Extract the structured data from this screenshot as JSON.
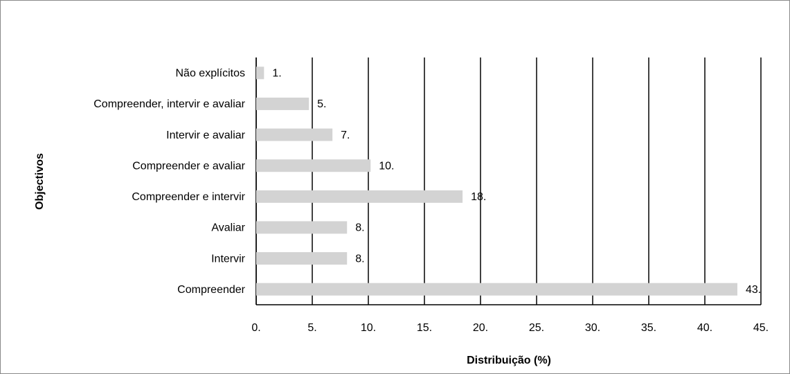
{
  "chart_data": {
    "type": "barh",
    "categories": [
      "Não explícitos",
      "Compreender, intervir e avaliar",
      "Intervir e avaliar",
      "Compreender e avaliar",
      "Compreender e intervir",
      "Avaliar",
      "Intervir",
      "Compreender"
    ],
    "values": [
      0.7,
      4.7,
      6.8,
      10.2,
      18.4,
      8.1,
      8.1,
      42.9
    ],
    "value_labels": [
      "1.",
      "5.",
      "7.",
      "10.",
      "18.",
      "8.",
      "8.",
      "43."
    ],
    "color": "#d3d3d3",
    "xlim": [
      0,
      45
    ],
    "xticks": [
      {
        "value": 0,
        "label": "0."
      },
      {
        "value": 5,
        "label": "5."
      },
      {
        "value": 10,
        "label": "10."
      },
      {
        "value": 15,
        "label": "15."
      },
      {
        "value": 20,
        "label": "20."
      },
      {
        "value": 25,
        "label": "25."
      },
      {
        "value": 30,
        "label": "30."
      },
      {
        "value": 35,
        "label": "35."
      },
      {
        "value": 40,
        "label": "40."
      },
      {
        "value": 45,
        "label": "45."
      }
    ],
    "grid": true,
    "xlabel": "Distribuição (%)",
    "ylabel": "Objectivos"
  }
}
